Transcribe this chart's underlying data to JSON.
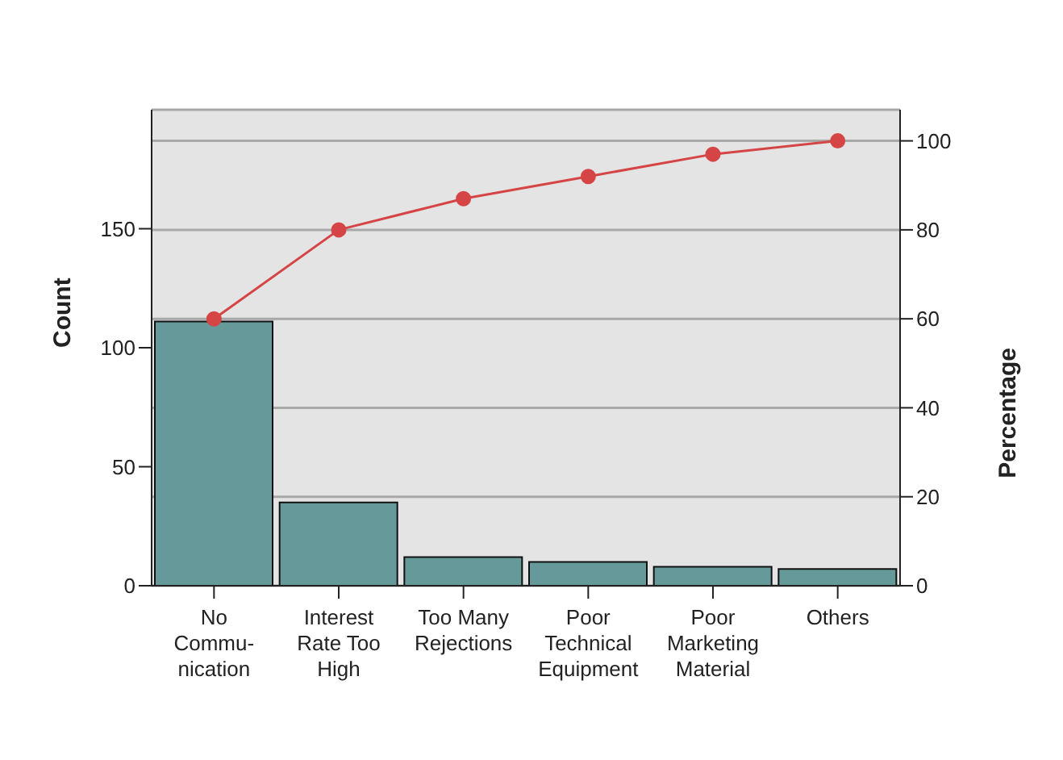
{
  "chart_data": {
    "type": "bar",
    "ylabel": "Count",
    "y2label": "Percentage",
    "categories": [
      "No\nCommu-\nnication",
      "Interest\nRate Too\nHigh",
      "Too Many\nRejections",
      "Poor\nTechnical\nEquipment",
      "Poor\nMarketing\nMaterial",
      "Others"
    ],
    "series": [
      {
        "color": "#669999",
        "values": [
          111,
          35,
          12,
          10,
          8,
          7
        ]
      },
      {
        "type": "line",
        "axis": "y2",
        "color": "#d64545",
        "marker": "circle",
        "values": [
          60,
          80,
          87,
          92,
          97,
          100
        ]
      }
    ],
    "ylim": [
      0,
      200
    ],
    "yticks": [
      0,
      50,
      100,
      150
    ],
    "y2lim": [
      0,
      107
    ],
    "y2ticks": [
      0,
      20,
      40,
      60,
      80,
      100
    ],
    "grid": "y"
  }
}
